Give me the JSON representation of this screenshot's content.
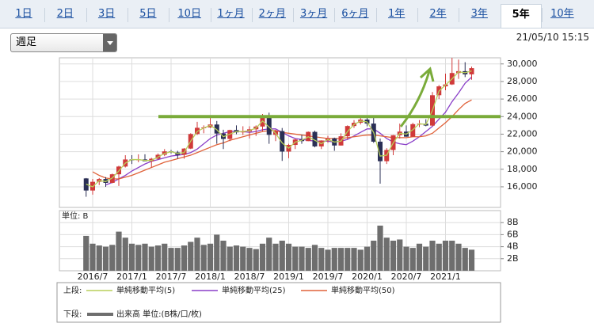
{
  "tabs": [
    "1日",
    "2日",
    "3日",
    "5日",
    "10日",
    "1ヶ月",
    "2ヶ月",
    "3ヶ月",
    "6ヶ月",
    "1年",
    "2年",
    "3年",
    "5年",
    "10年"
  ],
  "selected_tab": "5年",
  "dropdown": "週足",
  "timestamp": "21/05/10 15:15",
  "chart_data": {
    "type": "candlestick",
    "categories": [
      null,
      "2016/7",
      null,
      null,
      null,
      null,
      null,
      "2017/1",
      null,
      null,
      null,
      null,
      null,
      "2017/7",
      null,
      null,
      null,
      null,
      null,
      "2018/1",
      null,
      null,
      null,
      null,
      null,
      "2018/7",
      null,
      null,
      null,
      null,
      null,
      "2019/1",
      null,
      null,
      null,
      null,
      null,
      "2019/7",
      null,
      null,
      null,
      null,
      null,
      "2020/1",
      null,
      null,
      null,
      null,
      null,
      "2020/7",
      null,
      null,
      null,
      null,
      null,
      "2021/1",
      null,
      null,
      null,
      null
    ],
    "open": [
      16955,
      15576,
      16569,
      16887,
      16450,
      17425,
      18308,
      19114,
      19041,
      19119,
      18909,
      19197,
      19650,
      20033,
      19925,
      19646,
      20356,
      22011,
      22724,
      22764,
      23098,
      22068,
      21454,
      22467,
      22201,
      22305,
      22553,
      22865,
      24120,
      21920,
      22351,
      20015,
      20773,
      21385,
      21205,
      22258,
      20601,
      21275,
      21521,
      20704,
      21755,
      22927,
      23293,
      23656,
      23205,
      21142,
      18917,
      20193,
      21877,
      22288,
      21710,
      23139,
      23185,
      22977,
      26433,
      27444,
      27663,
      28966,
      29178,
      28813
    ],
    "high": [
      17000,
      16900,
      17000,
      17100,
      17500,
      18400,
      19600,
      19600,
      19700,
      19700,
      19300,
      19800,
      20300,
      20200,
      20100,
      20400,
      22100,
      23400,
      23000,
      24100,
      23500,
      22500,
      22500,
      23000,
      22900,
      22900,
      23000,
      24300,
      24450,
      22500,
      22700,
      20900,
      21500,
      21900,
      22300,
      22400,
      21300,
      21800,
      21600,
      22100,
      23000,
      23600,
      24100,
      24100,
      23995,
      21500,
      20400,
      21900,
      23200,
      23000,
      23300,
      23600,
      23700,
      26800,
      27600,
      28900,
      30700,
      30500,
      30200,
      29700
    ],
    "low": [
      14864,
      15100,
      16200,
      16000,
      16400,
      16100,
      18200,
      18600,
      18800,
      18900,
      18200,
      19100,
      19500,
      19800,
      19200,
      19200,
      20300,
      21900,
      22100,
      22700,
      20900,
      20300,
      21200,
      22000,
      21900,
      21500,
      21800,
      22300,
      20900,
      21200,
      18950,
      19250,
      20300,
      20900,
      21200,
      20500,
      20300,
      21000,
      20100,
      20700,
      21400,
      22700,
      23100,
      22900,
      21000,
      16358,
      18600,
      19600,
      21500,
      21700,
      21700,
      22800,
      22900,
      22900,
      26000,
      27000,
      27600,
      28300,
      28500,
      28200
    ],
    "close": [
      15576,
      16569,
      16887,
      16450,
      17425,
      18308,
      19114,
      19041,
      19119,
      18909,
      19197,
      19650,
      20033,
      19925,
      19646,
      20356,
      22011,
      22724,
      22764,
      23098,
      22068,
      21454,
      22467,
      22201,
      22305,
      22553,
      22865,
      24120,
      21920,
      22351,
      20015,
      20773,
      21385,
      21205,
      22258,
      20601,
      21275,
      21521,
      20704,
      21755,
      22927,
      23293,
      23656,
      23205,
      21142,
      18917,
      20193,
      21877,
      22288,
      21710,
      23139,
      23185,
      22977,
      26433,
      27444,
      27663,
      28966,
      29178,
      28813,
      29518
    ],
    "up_color": "#d03a3a",
    "down_color": "#2a2f55",
    "series": [
      {
        "name": "単純移動平均(5)",
        "color": "#b8cf5a",
        "values": [
          16300,
          16000,
          16700,
          16600,
          17000,
          17800,
          18700,
          19100,
          19100,
          19000,
          19000,
          19400,
          19800,
          20000,
          19800,
          19900,
          21200,
          22300,
          22700,
          23000,
          22500,
          21700,
          22000,
          22300,
          22300,
          22400,
          22700,
          23500,
          22800,
          22100,
          21000,
          20400,
          21100,
          21300,
          21700,
          21300,
          20900,
          21400,
          21100,
          21200,
          22300,
          23100,
          23500,
          23400,
          22200,
          19500,
          19600,
          21000,
          22100,
          22000,
          22500,
          23200,
          23100,
          24700,
          26900,
          27600,
          28300,
          29100,
          29000,
          29200
        ]
      },
      {
        "name": "単純移動平均(25)",
        "color": "#8a3fc8",
        "values": [
          null,
          null,
          null,
          16200,
          16500,
          16900,
          17300,
          17800,
          18200,
          18600,
          18900,
          19100,
          19300,
          19500,
          19600,
          19700,
          19900,
          20300,
          20900,
          21500,
          21900,
          22100,
          22300,
          22300,
          22300,
          22200,
          22300,
          22500,
          22600,
          22600,
          22200,
          21800,
          21500,
          21400,
          21300,
          21200,
          21200,
          21200,
          21100,
          21200,
          21400,
          21800,
          22200,
          22600,
          22600,
          22100,
          21500,
          21100,
          20900,
          20800,
          21200,
          21700,
          22300,
          22900,
          23700,
          24500,
          25700,
          26700,
          27800,
          28500
        ]
      },
      {
        "name": "単純移動平均(50)",
        "color": "#e0623a",
        "values": [
          null,
          17700,
          17300,
          17000,
          16900,
          16900,
          17100,
          17300,
          17600,
          17900,
          18200,
          18500,
          18800,
          19000,
          19200,
          19400,
          19600,
          19900,
          20200,
          20500,
          20800,
          21000,
          21300,
          21500,
          21700,
          21900,
          22100,
          22300,
          22400,
          22400,
          22200,
          22100,
          22000,
          21900,
          21800,
          21700,
          21600,
          21500,
          21500,
          21500,
          21600,
          21700,
          21800,
          21900,
          21900,
          21800,
          21700,
          21600,
          21600,
          21600,
          21700,
          21700,
          21800,
          22100,
          22700,
          23300,
          24000,
          24800,
          25500,
          25900
        ]
      }
    ],
    "ylim": [
      13650,
      30700
    ],
    "yticks": [
      {
        "value": 16000,
        "label": "16,000"
      },
      {
        "value": 18000,
        "label": "18,000"
      },
      {
        "value": 20000,
        "label": "20,000"
      },
      {
        "value": 22000,
        "label": "22,000"
      },
      {
        "value": 24000,
        "label": "24,000"
      },
      {
        "value": 26000,
        "label": "26,000"
      },
      {
        "value": 28000,
        "label": "28,000"
      },
      {
        "value": 30000,
        "label": "30,000"
      }
    ],
    "grid": true,
    "hline": 24000,
    "hline_color": "#7aab3a",
    "legend_top": "上段:",
    "legend_bottom": "下段:",
    "volume": {
      "name": "出来高 単位:(B株/口/枚)",
      "unit_label": "単位: B",
      "color": "#6e6e6e",
      "values": [
        5.8,
        4.5,
        4.2,
        4.0,
        4.3,
        6.5,
        5.5,
        4.5,
        4.3,
        4.5,
        4.0,
        4.2,
        4.5,
        3.8,
        3.8,
        4.2,
        4.8,
        5.5,
        4.3,
        4.5,
        6.0,
        5.0,
        4.0,
        4.2,
        4.0,
        3.8,
        3.6,
        4.5,
        5.5,
        4.5,
        5.0,
        4.5,
        4.0,
        4.0,
        3.8,
        4.3,
        3.8,
        3.5,
        3.8,
        3.8,
        3.8,
        3.8,
        3.5,
        4.0,
        5.0,
        7.5,
        5.5,
        5.0,
        5.2,
        4.0,
        3.8,
        4.5,
        4.0,
        5.0,
        4.5,
        5.0,
        5.0,
        4.5,
        3.8,
        3.5
      ],
      "ylim": [
        0,
        10
      ],
      "yticks": [
        {
          "value": 2,
          "label": "2B"
        },
        {
          "value": 4,
          "label": "4B"
        },
        {
          "value": 6,
          "label": "6B"
        },
        {
          "value": 8,
          "label": "8B"
        }
      ]
    }
  }
}
